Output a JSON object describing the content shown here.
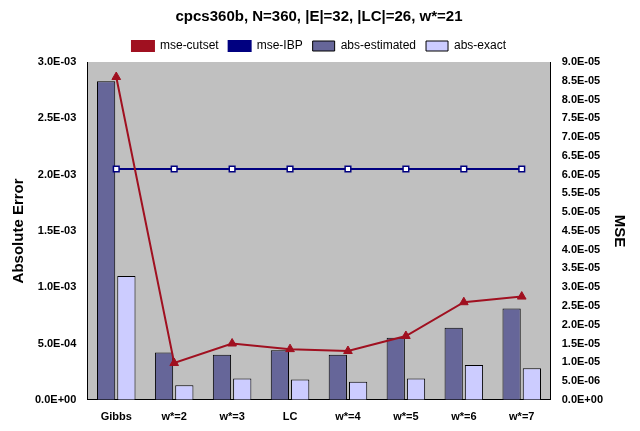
{
  "chart_data": {
    "type": "bar",
    "title": "cpcs360b, N=360, |E|=32, |LC|=26, w*=21",
    "y_label": "Absolute Error",
    "y2_label": "MSE",
    "categories": [
      "Gibbs",
      "w*=2",
      "w*=3",
      "LC",
      "w*=4",
      "w*=5",
      "w*=6",
      "w*=7"
    ],
    "series": [
      {
        "name": "abs-estimated",
        "type": "bar",
        "color": "#666699",
        "values": [
          0.00283,
          0.00042,
          0.0004,
          0.00044,
          0.0004,
          0.00055,
          0.00064,
          0.00081
        ]
      },
      {
        "name": "abs-exact",
        "type": "bar",
        "color": "#ccccff",
        "values": [
          0.0011,
          0.00013,
          0.00019,
          0.00018,
          0.00016,
          0.00019,
          0.00031,
          0.00028
        ]
      },
      {
        "name": "mse-cutset",
        "type": "line",
        "color": "#a01020",
        "marker": "triangle",
        "axis": "y2",
        "values": [
          8.6e-05,
          9.8e-06,
          1.5e-05,
          1.35e-05,
          1.3e-05,
          1.7e-05,
          2.6e-05,
          2.75e-05
        ]
      },
      {
        "name": "mse-IBP",
        "type": "line",
        "color": "#000080",
        "marker": "square",
        "axis": "y2",
        "values": [
          6.15e-05,
          6.15e-05,
          6.15e-05,
          6.15e-05,
          6.15e-05,
          6.15e-05,
          6.15e-05,
          6.15e-05
        ]
      }
    ],
    "ylim": [
      0,
      0.003
    ],
    "yticks": [
      {
        "value": 0,
        "label": "0.0E+00"
      },
      {
        "value": 0.0005,
        "label": "5.0E-04"
      },
      {
        "value": 0.001,
        "label": "1.0E-03"
      },
      {
        "value": 0.0015,
        "label": "1.5E-03"
      },
      {
        "value": 0.002,
        "label": "2.0E-03"
      },
      {
        "value": 0.0025,
        "label": "2.5E-03"
      },
      {
        "value": 0.003,
        "label": "3.0E-03"
      }
    ],
    "y2lim": [
      0,
      9e-05
    ],
    "y2ticks": [
      {
        "value": 0,
        "label": "0.0E+00"
      },
      {
        "value": 5e-06,
        "label": "5.0E-06"
      },
      {
        "value": 1e-05,
        "label": "1.0E-05"
      },
      {
        "value": 1.5e-05,
        "label": "1.5E-05"
      },
      {
        "value": 2e-05,
        "label": "2.0E-05"
      },
      {
        "value": 2.5e-05,
        "label": "2.5E-05"
      },
      {
        "value": 3e-05,
        "label": "3.0E-05"
      },
      {
        "value": 3.5e-05,
        "label": "3.5E-05"
      },
      {
        "value": 4e-05,
        "label": "4.0E-05"
      },
      {
        "value": 4.5e-05,
        "label": "4.5E-05"
      },
      {
        "value": 5e-05,
        "label": "5.0E-05"
      },
      {
        "value": 5.5e-05,
        "label": "5.5E-05"
      },
      {
        "value": 6e-05,
        "label": "6.0E-05"
      },
      {
        "value": 6.5e-05,
        "label": "6.5E-05"
      },
      {
        "value": 7e-05,
        "label": "7.0E-05"
      },
      {
        "value": 7.5e-05,
        "label": "7.5E-05"
      },
      {
        "value": 8e-05,
        "label": "8.0E-05"
      },
      {
        "value": 8.5e-05,
        "label": "8.5E-05"
      },
      {
        "value": 9e-05,
        "label": "9.0E-05"
      }
    ],
    "grid": false,
    "legend": "top"
  }
}
